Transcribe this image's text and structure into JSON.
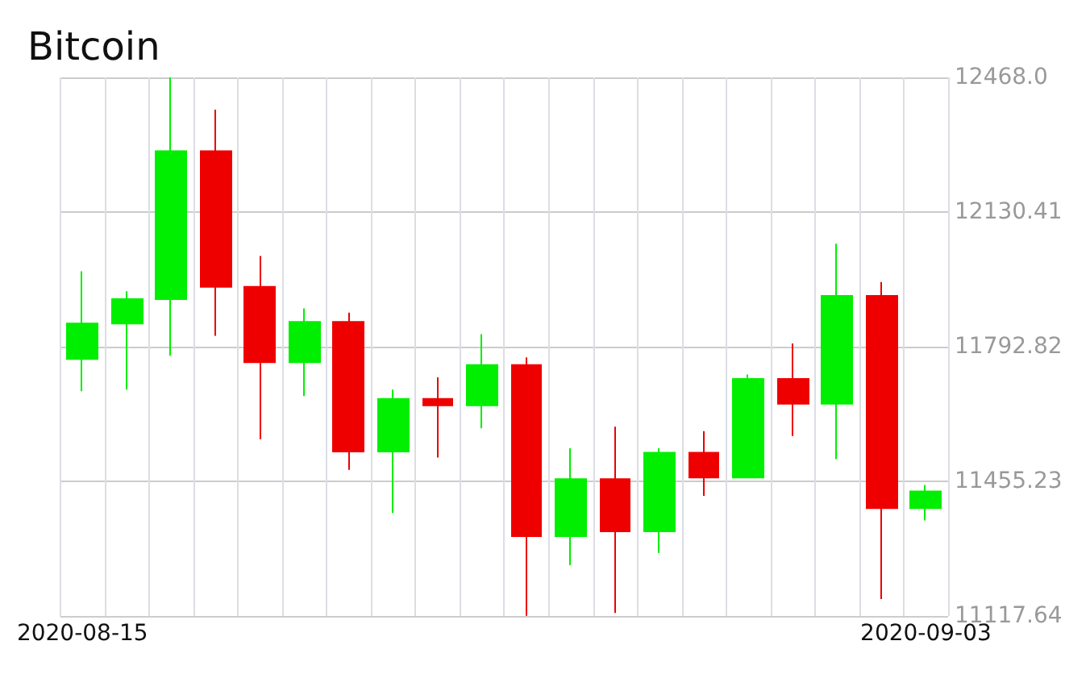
{
  "chart_data": {
    "type": "candlestick",
    "title": "Bitcoin",
    "categories": [
      "2020-08-15",
      null,
      null,
      null,
      null,
      null,
      null,
      null,
      null,
      null,
      null,
      null,
      null,
      null,
      null,
      null,
      null,
      null,
      null,
      "2020-09-03"
    ],
    "ohlc": [
      [
        11762,
        11982,
        11681,
        11851
      ],
      [
        11851,
        11932,
        11685,
        11912
      ],
      [
        11912,
        12468,
        11770,
        12283
      ],
      [
        12283,
        12387,
        11820,
        11943
      ],
      [
        11943,
        12020,
        11561,
        11754
      ],
      [
        11754,
        11889,
        11669,
        11855
      ],
      [
        11855,
        11878,
        11484,
        11530
      ],
      [
        11530,
        11685,
        11376,
        11662
      ],
      [
        11662,
        11716,
        11515,
        11646
      ],
      [
        11646,
        11824,
        11588,
        11747
      ],
      [
        11747,
        11766,
        11118,
        11318
      ],
      [
        11318,
        11538,
        11245,
        11461
      ],
      [
        11461,
        11592,
        11125,
        11330
      ],
      [
        11330,
        11538,
        11276,
        11527
      ],
      [
        11527,
        11581,
        11419,
        11465
      ],
      [
        11465,
        11723,
        11465,
        11712
      ],
      [
        11712,
        11801,
        11569,
        11650
      ],
      [
        11650,
        12051,
        11511,
        11920
      ],
      [
        11920,
        11955,
        11160,
        11388
      ],
      [
        11388,
        11446,
        11357,
        11430
      ]
    ],
    "colors": [
      "#00ee00",
      "#00ee00",
      "#00ee00",
      "#ee0000",
      "#ee0000",
      "#00ee00",
      "#ee0000",
      "#00ee00",
      "#ee0000",
      "#00ee00",
      "#ee0000",
      "#00ee00",
      "#ee0000",
      "#00ee00",
      "#ee0000",
      "#00ee00",
      "#ee0000",
      "#00ee00",
      "#ee0000",
      "#00ee00"
    ],
    "ylim": [
      11117.64,
      12468.0
    ],
    "yticks": [
      {
        "value": 11117.64,
        "label": "11117.64"
      },
      {
        "value": 11455.23,
        "label": "11455.23"
      },
      {
        "value": 11792.82,
        "label": "11792.82"
      },
      {
        "value": 12130.41,
        "label": "12130.41"
      },
      {
        "value": 12468.0,
        "label": "12468.0"
      }
    ],
    "grid": true
  }
}
